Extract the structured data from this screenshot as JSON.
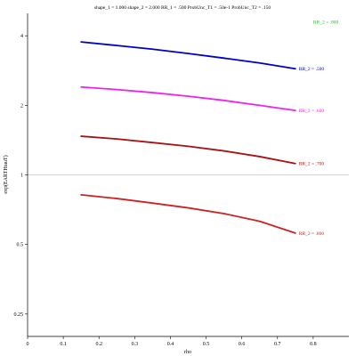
{
  "chart_data": {
    "type": "line",
    "title": "shape_1 = 1.000  shape_2 = 2.000  RR_1 = .500  ProbUnc_T1 = .50e-1  ProbUnc_T2 = .150",
    "xlabel": "rho",
    "ylabel": "exp(EARTHtauT)",
    "xlim": [
      0,
      0.9
    ],
    "ylim": [
      0.2,
      5
    ],
    "y_scale": "log",
    "grid": false,
    "x_ticks": [
      "0",
      "0.1",
      "0.2",
      "0.3",
      "0.4",
      "0.5",
      "0.6",
      "0.7",
      "0.8"
    ],
    "y_ticks": [
      {
        "value": 0.25,
        "label": "0.25"
      },
      {
        "value": 0.5,
        "label": "0.5"
      },
      {
        "value": 1,
        "label": "1"
      },
      {
        "value": 2,
        "label": "2"
      },
      {
        "value": 4,
        "label": "4"
      }
    ],
    "reference_line": {
      "y": 1,
      "color": "#aaaaaa"
    },
    "extra_labels": [
      {
        "text": "RR_2 = .800",
        "x": 0.8,
        "y": 4.6,
        "color": "#22bb22"
      }
    ],
    "series": [
      {
        "label": "RR_2 = .500",
        "color": "#0000cc",
        "x": [
          0.15,
          0.25,
          0.35,
          0.45,
          0.55,
          0.65,
          0.75
        ],
        "y": [
          3.76,
          3.63,
          3.5,
          3.35,
          3.2,
          3.05,
          2.88
        ]
      },
      {
        "label": "RR_2 = .600",
        "color": "#ee22ee",
        "x": [
          0.15,
          0.25,
          0.35,
          0.45,
          0.55,
          0.65,
          0.75
        ],
        "y": [
          2.4,
          2.34,
          2.27,
          2.19,
          2.1,
          2.0,
          1.9
        ]
      },
      {
        "label": "RR_2 = .700",
        "color": "#aa1111",
        "x": [
          0.15,
          0.25,
          0.35,
          0.45,
          0.55,
          0.65,
          0.75
        ],
        "y": [
          1.47,
          1.43,
          1.38,
          1.33,
          1.27,
          1.2,
          1.12
        ]
      },
      {
        "label": "RR_2 = .800",
        "color": "#cc2222",
        "x": [
          0.15,
          0.25,
          0.35,
          0.45,
          0.55,
          0.65,
          0.75
        ],
        "y": [
          0.82,
          0.79,
          0.755,
          0.72,
          0.68,
          0.63,
          0.56
        ]
      }
    ]
  }
}
